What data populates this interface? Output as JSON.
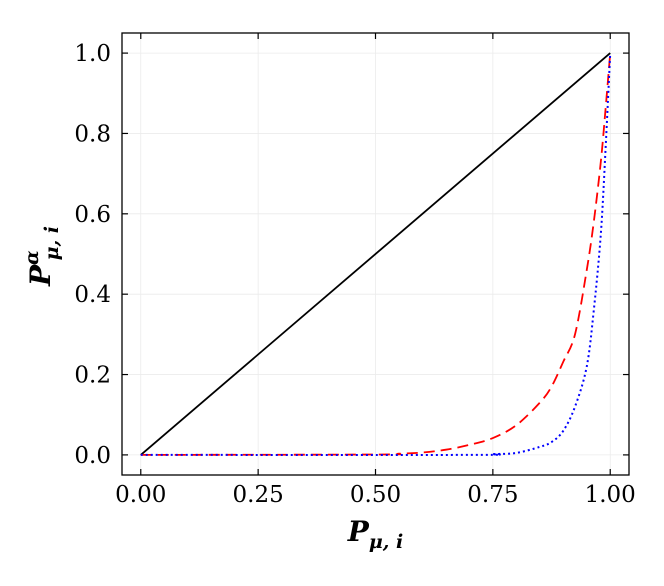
{
  "chart_data": {
    "type": "line",
    "xlabel": "P_{μ,i}",
    "ylabel": "P^α_{μ,i}",
    "xlabel_parts": {
      "base": "P",
      "sub": "μ, i"
    },
    "ylabel_parts": {
      "base": "P",
      "sup": "α",
      "sub": "μ, i"
    },
    "xlim": [
      -0.04,
      1.04
    ],
    "ylim": [
      -0.05,
      1.05
    ],
    "grid": true,
    "x_ticks": [
      0.0,
      0.25,
      0.5,
      0.75,
      1.0
    ],
    "x_tick_labels": [
      "0.00",
      "0.25",
      "0.50",
      "0.75",
      "1.00"
    ],
    "y_ticks": [
      0.0,
      0.2,
      0.4,
      0.6,
      0.8,
      1.0
    ],
    "y_tick_labels": [
      "0.0",
      "0.2",
      "0.4",
      "0.6",
      "0.8",
      "1.0"
    ],
    "series": [
      {
        "color": "#000000",
        "style": "solid",
        "x": [
          0.0,
          1.0
        ],
        "y": [
          0.0,
          1.0
        ]
      },
      {
        "color": "#ff0000",
        "style": "dashed",
        "x": [
          0.0,
          0.5,
          0.55,
          0.6,
          0.65,
          0.7,
          0.75,
          0.8,
          0.85,
          0.875,
          0.9,
          0.925,
          0.95,
          0.965,
          0.98,
          0.99,
          1.0
        ],
        "y": [
          0.0,
          0.001,
          0.003,
          0.006,
          0.013,
          0.025,
          0.042,
          0.074,
          0.13,
          0.17,
          0.232,
          0.3,
          0.46,
          0.58,
          0.73,
          0.86,
          1.0
        ]
      },
      {
        "color": "#0000ff",
        "style": "dotted",
        "x": [
          0.0,
          0.7,
          0.75,
          0.8,
          0.85,
          0.875,
          0.9,
          0.925,
          0.95,
          0.965,
          0.98,
          0.99,
          1.0
        ],
        "y": [
          0.0,
          0.0,
          0.002,
          0.005,
          0.02,
          0.032,
          0.06,
          0.12,
          0.22,
          0.36,
          0.55,
          0.76,
          1.0
        ]
      }
    ]
  }
}
